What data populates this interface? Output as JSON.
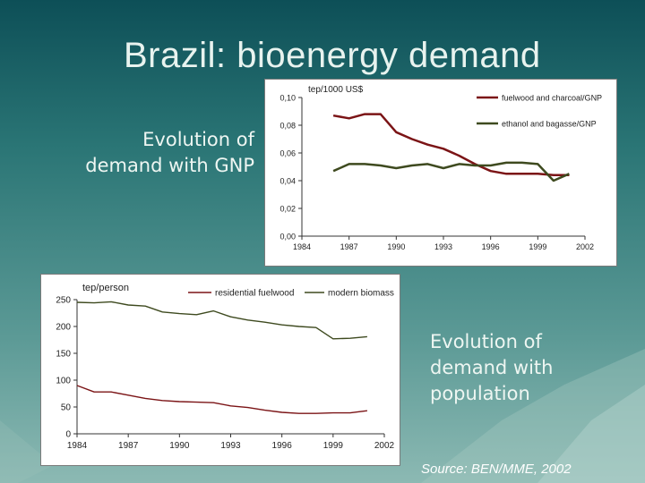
{
  "slide": {
    "title": "Brazil: bioenergy demand",
    "caption_gnp": [
      "Evolution of",
      "demand with GNP"
    ],
    "caption_population": [
      "Evolution of",
      "demand with",
      "population"
    ],
    "source": "Source: BEN/MME, 2002",
    "colors": {
      "fuelwood": "#7b1416",
      "biomass": "#3e4a1f",
      "background_dark": "#0d4f57",
      "background_light": "#8cb9b3"
    }
  },
  "chart_data": [
    {
      "type": "line",
      "title": "",
      "ylabel": "tep/1000 US$",
      "xlabel": "",
      "x_ticks": [
        "1984",
        "1987",
        "1990",
        "1993",
        "1996",
        "1999",
        "2002"
      ],
      "y_ticks": [
        "0,00",
        "0,02",
        "0,04",
        "0,06",
        "0,08",
        "0,10"
      ],
      "xlim": [
        1984,
        2002
      ],
      "ylim": [
        0,
        0.1
      ],
      "grid": false,
      "legend": "top-right",
      "series": [
        {
          "name": "fuelwood and charcoal/GNP",
          "color": "#7b1416",
          "x": [
            1986,
            1987,
            1988,
            1989,
            1990,
            1991,
            1992,
            1993,
            1994,
            1995,
            1996,
            1997,
            1998,
            1999,
            2000,
            2001
          ],
          "values": [
            0.087,
            0.085,
            0.088,
            0.088,
            0.075,
            0.07,
            0.066,
            0.063,
            0.058,
            0.052,
            0.047,
            0.045,
            0.045,
            0.045,
            0.044,
            0.044
          ]
        },
        {
          "name": "ethanol and bagasse/GNP",
          "color": "#3e4a1f",
          "x": [
            1986,
            1987,
            1988,
            1989,
            1990,
            1991,
            1992,
            1993,
            1994,
            1995,
            1996,
            1997,
            1998,
            1999,
            2000,
            2001
          ],
          "values": [
            0.047,
            0.052,
            0.052,
            0.051,
            0.049,
            0.051,
            0.052,
            0.049,
            0.052,
            0.051,
            0.051,
            0.053,
            0.053,
            0.052,
            0.04,
            0.045
          ]
        }
      ]
    },
    {
      "type": "line",
      "title": "",
      "ylabel": "tep/person",
      "xlabel": "",
      "x_ticks": [
        "1984",
        "1987",
        "1990",
        "1993",
        "1996",
        "1999",
        "2002"
      ],
      "y_ticks": [
        "0",
        "50",
        "100",
        "150",
        "200",
        "250"
      ],
      "xlim": [
        1984,
        2002
      ],
      "ylim": [
        0,
        250
      ],
      "grid": false,
      "legend": "top-right",
      "series": [
        {
          "name": "residential fuelwood",
          "color": "#7b1416",
          "x": [
            1984,
            1985,
            1986,
            1987,
            1988,
            1989,
            1990,
            1991,
            1992,
            1993,
            1994,
            1995,
            1996,
            1997,
            1998,
            1999,
            2000,
            2001
          ],
          "values": [
            90,
            78,
            78,
            72,
            66,
            62,
            60,
            59,
            58,
            52,
            49,
            44,
            40,
            38,
            38,
            39,
            39,
            43
          ]
        },
        {
          "name": "modern biomass",
          "color": "#3e4a1f",
          "x": [
            1984,
            1985,
            1986,
            1987,
            1988,
            1989,
            1990,
            1991,
            1992,
            1993,
            1994,
            1995,
            1996,
            1997,
            1998,
            1999,
            2000,
            2001
          ],
          "values": [
            245,
            244,
            246,
            240,
            238,
            227,
            224,
            222,
            229,
            218,
            212,
            208,
            203,
            200,
            198,
            177,
            178,
            181
          ]
        }
      ]
    }
  ]
}
